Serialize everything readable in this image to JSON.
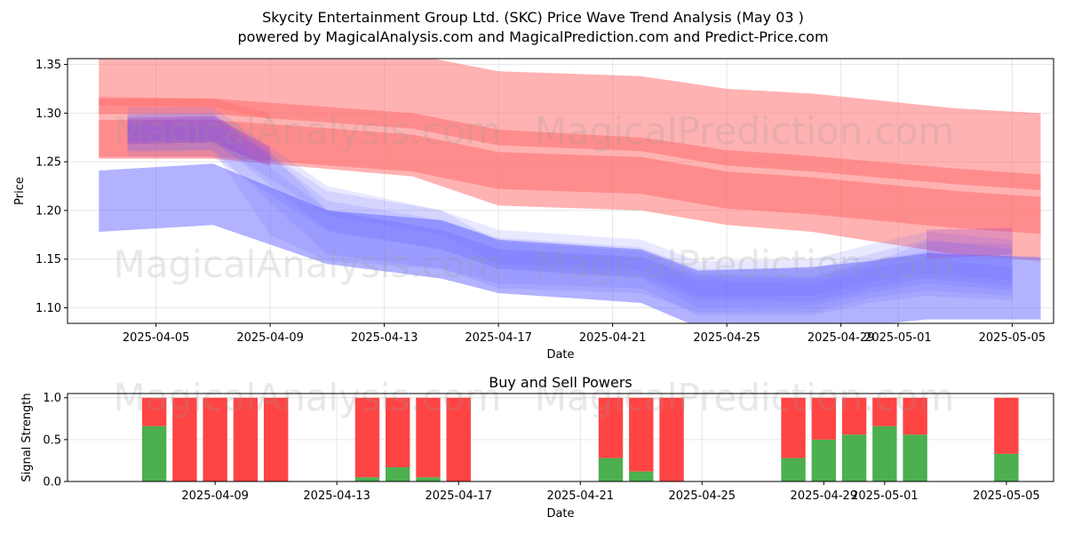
{
  "title_line1": "Skycity Entertainment Group Ltd. (SKC) Price Wave Trend Analysis (May 03 )",
  "title_line2": "powered by MagicalAnalysis.com and MagicalPrediction.com and Predict-Price.com",
  "watermarks": [
    "MagicalAnalysis.com",
    "MagicalPrediction.com"
  ],
  "colors": {
    "red_band": "#ff6666",
    "blue_band": "#6666ff",
    "buy": "#4caf50",
    "sell": "#ff4444"
  },
  "chart_data": [
    {
      "type": "area",
      "xlabel": "Date",
      "ylabel": "Price",
      "ylim": [
        1.084,
        1.356
      ],
      "x_ticks": [
        "2025-04-05",
        "2025-04-09",
        "2025-04-13",
        "2025-04-17",
        "2025-04-21",
        "2025-04-25",
        "2025-04-29",
        "2025-05-01",
        "2025-05-05"
      ],
      "y_ticks": [
        "1.10",
        "1.15",
        "1.20",
        "1.25",
        "1.30",
        "1.35"
      ],
      "grid": true,
      "series": [
        {
          "color": "red",
          "alpha": 0.5,
          "x": [
            "2025-04-03",
            "2025-04-07",
            "2025-04-14",
            "2025-04-17",
            "2025-04-22",
            "2025-04-25",
            "2025-04-28",
            "2025-05-03",
            "2025-05-06"
          ],
          "upper": [
            1.365,
            1.365,
            1.36,
            1.343,
            1.338,
            1.325,
            1.32,
            1.305,
            1.3
          ],
          "lower": [
            1.253,
            1.253,
            1.235,
            1.205,
            1.2,
            1.185,
            1.178,
            1.155,
            1.148
          ]
        },
        {
          "color": "red",
          "alpha": 0.5,
          "x": [
            "2025-04-03",
            "2025-04-07",
            "2025-04-14",
            "2025-04-17",
            "2025-04-22",
            "2025-04-25",
            "2025-04-28",
            "2025-05-03",
            "2025-05-06"
          ],
          "upper": [
            1.315,
            1.315,
            1.3,
            1.283,
            1.275,
            1.262,
            1.256,
            1.243,
            1.237
          ],
          "lower": [
            1.299,
            1.299,
            1.284,
            1.267,
            1.261,
            1.246,
            1.24,
            1.227,
            1.221
          ]
        },
        {
          "color": "red",
          "alpha": 0.5,
          "x": [
            "2025-04-03",
            "2025-04-07",
            "2025-04-14",
            "2025-04-17",
            "2025-04-22",
            "2025-04-25",
            "2025-04-28",
            "2025-05-03",
            "2025-05-06"
          ],
          "upper": [
            1.293,
            1.293,
            1.278,
            1.26,
            1.255,
            1.24,
            1.234,
            1.22,
            1.214
          ],
          "lower": [
            1.255,
            1.255,
            1.24,
            1.222,
            1.217,
            1.202,
            1.196,
            1.182,
            1.176
          ]
        },
        {
          "color": "red",
          "alpha": 0.35,
          "x": [
            "2025-04-03",
            "2025-04-07",
            "2025-04-09"
          ],
          "upper": [
            1.317,
            1.315,
            1.3
          ],
          "lower": [
            1.308,
            1.306,
            1.294
          ]
        },
        {
          "color": "blue",
          "alpha": 0.5,
          "x": [
            "2025-04-03",
            "2025-04-07",
            "2025-04-11",
            "2025-04-15",
            "2025-04-17",
            "2025-04-22",
            "2025-04-24",
            "2025-04-28",
            "2025-04-30",
            "2025-05-02",
            "2025-05-06"
          ],
          "upper": [
            1.241,
            1.248,
            1.2,
            1.19,
            1.17,
            1.16,
            1.138,
            1.142,
            1.148,
            1.156,
            1.152
          ],
          "lower": [
            1.178,
            1.185,
            1.145,
            1.13,
            1.115,
            1.105,
            1.08,
            1.08,
            1.082,
            1.088,
            1.088
          ]
        },
        {
          "color": "blue",
          "alpha": 0.15,
          "x": [
            "2025-04-04",
            "2025-04-07",
            "2025-04-11",
            "2025-04-15",
            "2025-04-17",
            "2025-04-22",
            "2025-04-24",
            "2025-04-28",
            "2025-04-30",
            "2025-05-02",
            "2025-05-05"
          ],
          "upper": [
            1.306,
            1.306,
            1.225,
            1.2,
            1.18,
            1.17,
            1.148,
            1.15,
            1.165,
            1.178,
            1.17
          ],
          "lower": [
            1.255,
            1.255,
            1.178,
            1.16,
            1.14,
            1.13,
            1.1,
            1.102,
            1.115,
            1.125,
            1.118
          ]
        },
        {
          "color": "blue",
          "alpha": 0.15,
          "x": [
            "2025-04-04",
            "2025-04-07",
            "2025-04-11",
            "2025-04-15",
            "2025-04-17",
            "2025-04-22",
            "2025-04-24",
            "2025-04-28",
            "2025-04-30",
            "2025-05-02",
            "2025-05-05"
          ],
          "upper": [
            1.298,
            1.3,
            1.21,
            1.19,
            1.172,
            1.162,
            1.14,
            1.14,
            1.155,
            1.17,
            1.16
          ],
          "lower": [
            1.262,
            1.262,
            1.155,
            1.14,
            1.125,
            1.12,
            1.092,
            1.092,
            1.105,
            1.112,
            1.108
          ]
        },
        {
          "color": "blue",
          "alpha": 0.15,
          "x": [
            "2025-04-04",
            "2025-04-07",
            "2025-04-11",
            "2025-04-15",
            "2025-04-17",
            "2025-04-22",
            "2025-04-24",
            "2025-04-28",
            "2025-04-30",
            "2025-05-02",
            "2025-05-05"
          ],
          "upper": [
            1.292,
            1.295,
            1.22,
            1.2,
            1.168,
            1.158,
            1.135,
            1.132,
            1.148,
            1.158,
            1.15
          ],
          "lower": [
            1.27,
            1.27,
            1.195,
            1.175,
            1.145,
            1.138,
            1.112,
            1.112,
            1.126,
            1.135,
            1.128
          ]
        },
        {
          "color": "blue",
          "alpha": 0.15,
          "x": [
            "2025-04-04",
            "2025-04-07",
            "2025-04-11",
            "2025-04-15",
            "2025-04-17",
            "2025-04-22",
            "2025-04-24",
            "2025-04-28",
            "2025-04-30",
            "2025-05-02",
            "2025-05-05"
          ],
          "upper": [
            1.288,
            1.288,
            1.2,
            1.18,
            1.16,
            1.152,
            1.128,
            1.125,
            1.14,
            1.15,
            1.142
          ],
          "lower": [
            1.272,
            1.272,
            1.18,
            1.16,
            1.14,
            1.132,
            1.108,
            1.106,
            1.12,
            1.13,
            1.122
          ]
        },
        {
          "color": "blue",
          "alpha": 0.15,
          "x": [
            "2025-04-04",
            "2025-04-07",
            "2025-04-09",
            "2025-04-11",
            "2025-04-15",
            "2025-04-17",
            "2025-04-22",
            "2025-04-24",
            "2025-04-28",
            "2025-04-30",
            "2025-05-02",
            "2025-05-05"
          ],
          "upper": [
            1.3,
            1.3,
            1.26,
            1.2,
            1.18,
            1.16,
            1.152,
            1.132,
            1.13,
            1.145,
            1.168,
            1.165
          ],
          "lower": [
            1.26,
            1.262,
            1.175,
            1.148,
            1.14,
            1.12,
            1.115,
            1.095,
            1.095,
            1.11,
            1.118,
            1.112
          ]
        },
        {
          "color": "purple",
          "alpha": 0.3,
          "x": [
            "2025-04-04",
            "2025-04-07",
            "2025-04-09"
          ],
          "upper": [
            1.295,
            1.297,
            1.265
          ],
          "lower": [
            1.268,
            1.27,
            1.245
          ]
        },
        {
          "color": "purple",
          "alpha": 0.25,
          "x": [
            "2025-05-02",
            "2025-05-05"
          ],
          "upper": [
            1.18,
            1.182
          ],
          "lower": [
            1.15,
            1.155
          ]
        }
      ]
    },
    {
      "type": "bar",
      "title": "Buy and Sell Powers",
      "xlabel": "Date",
      "ylabel": "Signal Strength",
      "ylim": [
        0,
        1.05
      ],
      "x_ticks": [
        "2025-04-09",
        "2025-04-13",
        "2025-04-17",
        "2025-04-21",
        "2025-04-25",
        "2025-04-29",
        "2025-05-01",
        "2025-05-05"
      ],
      "y_ticks": [
        "0.0",
        "0.5",
        "1.0"
      ],
      "grid": true,
      "categories": [
        "2025-04-07",
        "2025-04-08",
        "2025-04-09",
        "2025-04-10",
        "2025-04-11",
        "2025-04-14",
        "2025-04-15",
        "2025-04-16",
        "2025-04-17",
        "2025-04-22",
        "2025-04-23",
        "2025-04-24",
        "2025-04-28",
        "2025-04-29",
        "2025-04-30",
        "2025-05-01",
        "2025-05-02",
        "2025-05-05"
      ],
      "series": [
        {
          "color": "green",
          "values": [
            0.66,
            0,
            0,
            0,
            0,
            0.05,
            0.17,
            0.05,
            0,
            0.28,
            0.12,
            0,
            0.28,
            0.5,
            0.56,
            0.66,
            0.56,
            0.33
          ]
        },
        {
          "color": "red",
          "values": [
            0.34,
            1,
            1,
            1,
            1,
            0.95,
            0.83,
            0.95,
            1,
            0.72,
            0.88,
            1,
            0.72,
            0.5,
            0.44,
            0.34,
            0.44,
            0.67
          ]
        }
      ]
    }
  ]
}
